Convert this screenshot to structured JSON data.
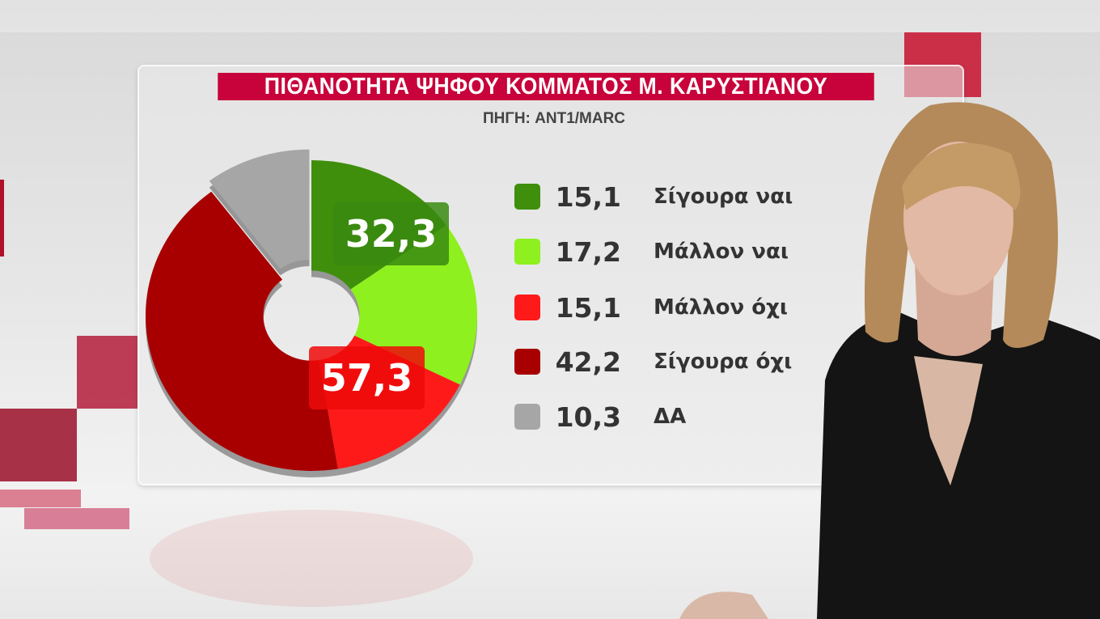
{
  "title": "ΠΙΘΑΝΟΤΗΤΑ ΨΗΦΟΥ ΚΟΜΜΑΤΟΣ Μ. ΚΑΡΥΣΤΙΑΝΟΥ",
  "source": "ΠΗΓΗ: ANT1/MARC",
  "chart_data": {
    "type": "pie",
    "title": "ΠΙΘΑΝΟΤΗΤΑ ΨΗΦΟΥ ΚΟΜΜΑΤΟΣ Μ. ΚΑΡΥΣΤΙΑΝΟΥ",
    "donut": true,
    "categories": [
      "Σίγουρα ναι",
      "Μάλλον ναι",
      "Μάλλον όχι",
      "Σίγουρα όχι",
      "ΔΑ"
    ],
    "values": [
      15.1,
      17.2,
      15.1,
      42.2,
      10.3
    ],
    "value_labels": [
      "15,1",
      "17,2",
      "15,1",
      "42,2",
      "10,3"
    ],
    "colors": [
      "#3f8f0c",
      "#8ef01e",
      "#ff1a1a",
      "#a80000",
      "#a6a6a6"
    ],
    "group_labels": [
      {
        "text": "32,3",
        "color": "#3a8a10"
      },
      {
        "text": "57,3",
        "color": "#ee0a0a"
      }
    ],
    "legend_position": "right"
  },
  "accent": "#c8023a"
}
